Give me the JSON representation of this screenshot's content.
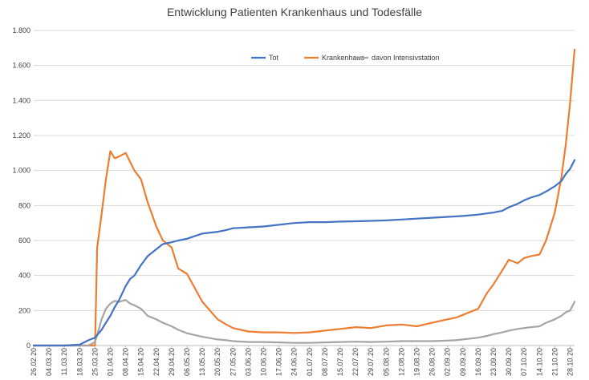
{
  "chart_data": {
    "type": "line",
    "title": "Entwicklung Patienten Krankenhaus und Todesfälle",
    "xlabel": "",
    "ylabel": "",
    "ylim": [
      0,
      1800
    ],
    "yticks": [
      0,
      200,
      400,
      600,
      800,
      1000,
      1200,
      1400,
      1600,
      1800
    ],
    "ytick_labels": [
      "0",
      "200",
      "400",
      "600",
      "800",
      "1.000",
      "1.200",
      "1.400",
      "1.600",
      "1.800"
    ],
    "grid": "horizontal",
    "legend_position": "top-center",
    "x_tick_labels": [
      "26.02.20",
      "04.03.20",
      "11.03.20",
      "18.03.20",
      "25.03.20",
      "01.04.20",
      "08.04.20",
      "15.04.20",
      "22.04.20",
      "29.04.20",
      "06.05.20",
      "13.05.20",
      "20.05.20",
      "27.05.20",
      "03.06.20",
      "10.06.20",
      "17.06.20",
      "24.06.20",
      "01.07.20",
      "08.07.20",
      "15.07.20",
      "22.07.20",
      "29.07.20",
      "05.08.20",
      "12.08.20",
      "19.08.20",
      "26.08.20",
      "02.09.20",
      "09.09.20",
      "16.09.20",
      "23.09.20",
      "30.09.20",
      "07.10.20",
      "14.10.20",
      "21.10.20",
      "28.10.20"
    ],
    "x": [
      "26.02.20",
      "04.03.20",
      "11.03.20",
      "18.03.20",
      "22.03.20",
      "25.03.20",
      "26.03.20",
      "28.03.20",
      "30.03.20",
      "01.04.20",
      "03.04.20",
      "05.04.20",
      "08.04.20",
      "10.04.20",
      "12.04.20",
      "15.04.20",
      "18.04.20",
      "22.04.20",
      "25.04.20",
      "29.04.20",
      "02.05.20",
      "06.05.20",
      "13.05.20",
      "20.05.20",
      "24.05.20",
      "27.05.20",
      "03.06.20",
      "10.06.20",
      "17.06.20",
      "24.06.20",
      "01.07.20",
      "08.07.20",
      "15.07.20",
      "22.07.20",
      "29.07.20",
      "05.08.20",
      "12.08.20",
      "19.08.20",
      "26.08.20",
      "02.09.20",
      "06.09.20",
      "09.09.20",
      "16.09.20",
      "20.09.20",
      "23.09.20",
      "27.09.20",
      "30.09.20",
      "04.10.20",
      "07.10.20",
      "10.10.20",
      "14.10.20",
      "17.10.20",
      "21.10.20",
      "24.10.20",
      "26.10.20",
      "28.10.20",
      "30.10.20"
    ],
    "series": [
      {
        "name": "Tot",
        "color": "#4472c4",
        "values": [
          0,
          0,
          0,
          5,
          30,
          45,
          60,
          90,
          130,
          170,
          220,
          260,
          340,
          380,
          400,
          460,
          510,
          550,
          580,
          590,
          600,
          610,
          640,
          650,
          660,
          670,
          675,
          680,
          690,
          700,
          705,
          705,
          708,
          710,
          712,
          715,
          720,
          725,
          730,
          735,
          738,
          740,
          748,
          755,
          760,
          770,
          790,
          810,
          830,
          845,
          860,
          880,
          910,
          940,
          980,
          1010,
          1060
        ]
      },
      {
        "name": "Krankenhaus",
        "color": "#ed7d31",
        "values": [
          0,
          0,
          0,
          0,
          0,
          0,
          560,
          750,
          950,
          1110,
          1070,
          1080,
          1100,
          1050,
          1000,
          950,
          820,
          680,
          600,
          560,
          440,
          410,
          250,
          150,
          120,
          100,
          80,
          75,
          75,
          72,
          75,
          85,
          95,
          105,
          100,
          115,
          120,
          110,
          130,
          150,
          160,
          175,
          210,
          300,
          350,
          430,
          490,
          470,
          500,
          510,
          520,
          600,
          760,
          960,
          1150,
          1390,
          1690
        ]
      },
      {
        "name": "davon Intensivstation",
        "color": "#a5a5a5",
        "values": [
          0,
          0,
          0,
          0,
          0,
          20,
          60,
          150,
          210,
          240,
          255,
          250,
          260,
          240,
          230,
          210,
          170,
          150,
          130,
          110,
          90,
          70,
          50,
          35,
          30,
          25,
          20,
          20,
          18,
          15,
          15,
          18,
          20,
          22,
          20,
          22,
          25,
          25,
          25,
          28,
          30,
          35,
          45,
          55,
          65,
          75,
          85,
          95,
          100,
          105,
          110,
          130,
          150,
          170,
          190,
          200,
          250
        ]
      }
    ]
  }
}
